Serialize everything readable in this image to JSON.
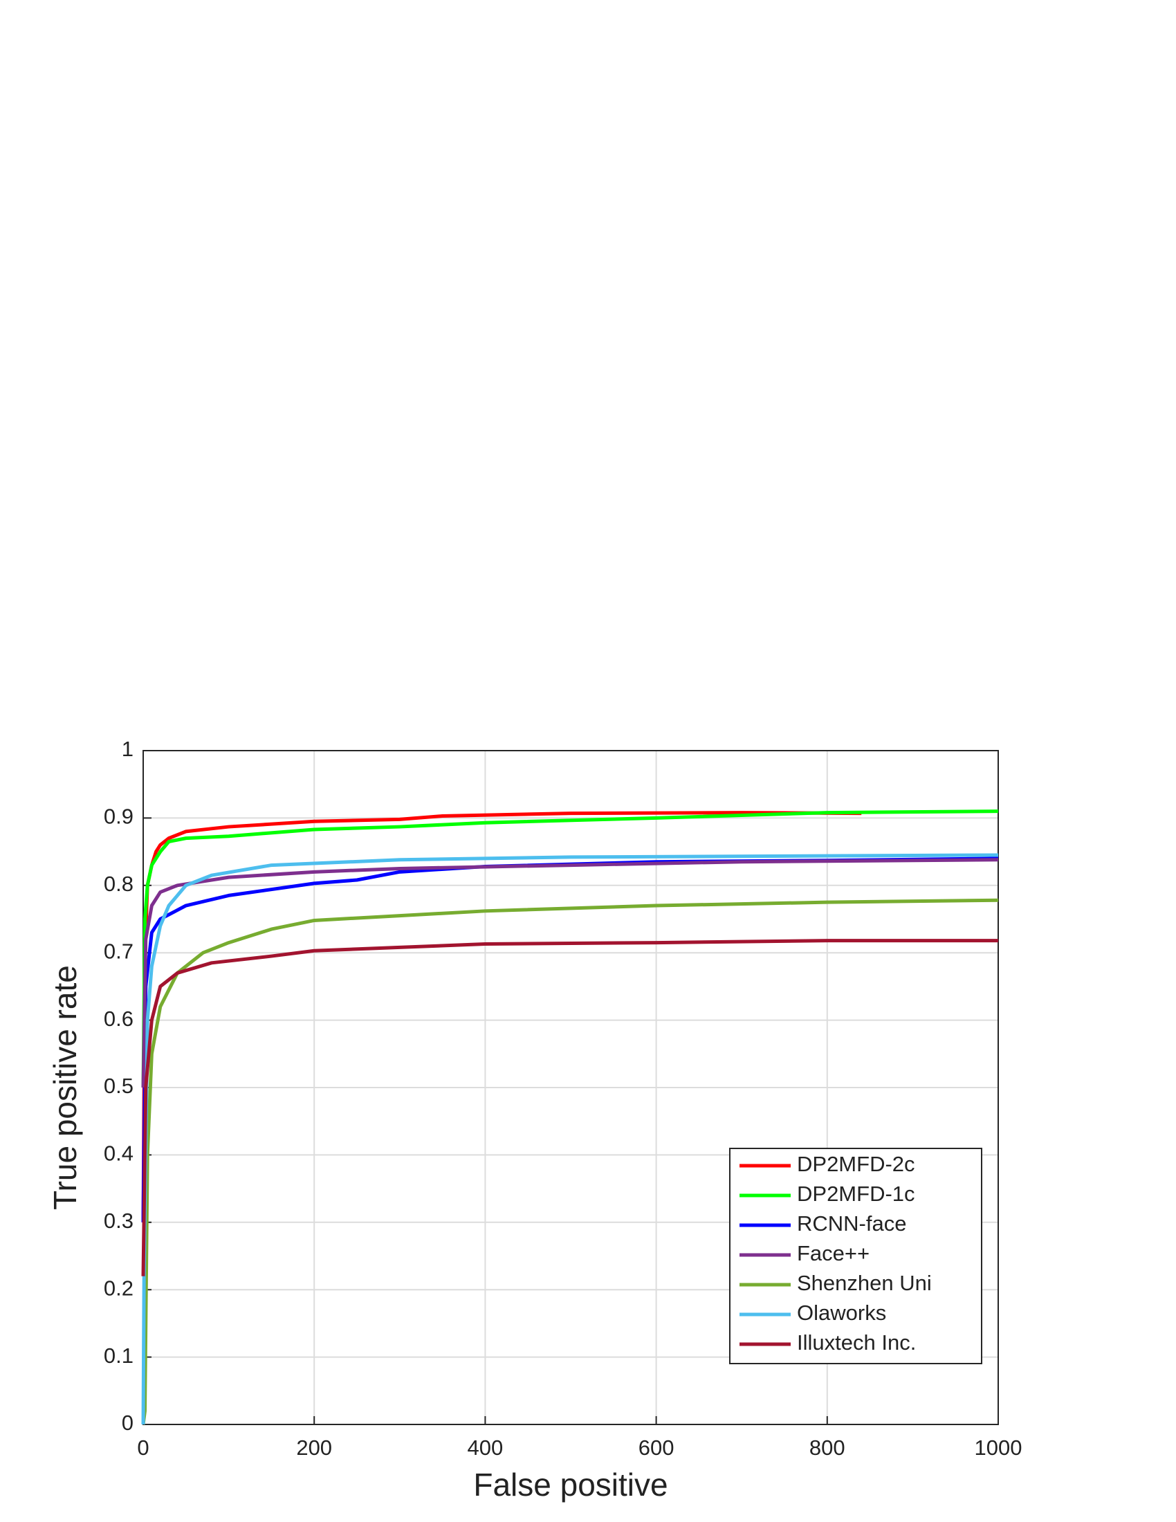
{
  "chart_data": {
    "type": "line",
    "xlabel": "False positive",
    "ylabel": "True positive rate",
    "xlim": [
      0,
      1000
    ],
    "ylim": [
      0,
      1
    ],
    "xticks": [
      0,
      200,
      400,
      600,
      800,
      1000
    ],
    "yticks": [
      0,
      0.1,
      0.2,
      0.3,
      0.4,
      0.5,
      0.6,
      0.7,
      0.8,
      0.9,
      1
    ],
    "grid": true,
    "legend": "lower right",
    "series": [
      {
        "name": "DP2MFD-2c",
        "color": "#ff0000",
        "x": [
          0,
          2,
          5,
          10,
          15,
          20,
          30,
          50,
          100,
          200,
          300,
          350,
          500,
          700,
          840
        ],
        "values": [
          0.3,
          0.7,
          0.8,
          0.83,
          0.85,
          0.86,
          0.87,
          0.88,
          0.887,
          0.895,
          0.898,
          0.903,
          0.907,
          0.908,
          0.907
        ]
      },
      {
        "name": "DP2MFD-1c",
        "color": "#00ff00",
        "x": [
          0,
          2,
          5,
          10,
          20,
          30,
          50,
          100,
          200,
          300,
          400,
          600,
          800,
          1000
        ],
        "values": [
          0.5,
          0.75,
          0.8,
          0.83,
          0.85,
          0.865,
          0.87,
          0.873,
          0.883,
          0.887,
          0.893,
          0.9,
          0.908,
          0.91
        ]
      },
      {
        "name": "RCNN-face",
        "color": "#0000ff",
        "x": [
          0,
          3,
          10,
          20,
          50,
          100,
          200,
          250,
          300,
          400,
          600,
          800,
          1000
        ],
        "values": [
          0.3,
          0.65,
          0.73,
          0.75,
          0.77,
          0.785,
          0.803,
          0.808,
          0.82,
          0.828,
          0.835,
          0.837,
          0.84
        ]
      },
      {
        "name": "Face++",
        "color": "#7e2f8e",
        "x": [
          0,
          3,
          10,
          20,
          40,
          100,
          200,
          300,
          500,
          700,
          1000
        ],
        "values": [
          0.5,
          0.72,
          0.77,
          0.79,
          0.8,
          0.812,
          0.82,
          0.825,
          0.83,
          0.835,
          0.838
        ]
      },
      {
        "name": "Shenzhen Uni",
        "color": "#77ac30",
        "x": [
          0,
          2,
          5,
          10,
          20,
          40,
          70,
          100,
          150,
          200,
          300,
          400,
          600,
          800,
          1000
        ],
        "values": [
          0,
          0.02,
          0.4,
          0.55,
          0.62,
          0.67,
          0.7,
          0.715,
          0.735,
          0.748,
          0.755,
          0.762,
          0.77,
          0.775,
          0.778
        ]
      },
      {
        "name": "Olaworks",
        "color": "#4dbeee",
        "x": [
          0,
          1,
          5,
          10,
          20,
          30,
          50,
          80,
          150,
          300,
          500,
          1000
        ],
        "values": [
          0,
          0.22,
          0.6,
          0.68,
          0.74,
          0.77,
          0.8,
          0.815,
          0.83,
          0.838,
          0.842,
          0.845
        ]
      },
      {
        "name": "Illuxtech Inc.",
        "color": "#a2142f",
        "x": [
          0,
          3,
          10,
          20,
          40,
          80,
          150,
          200,
          300,
          400,
          600,
          800,
          1000
        ],
        "values": [
          0.22,
          0.5,
          0.6,
          0.65,
          0.67,
          0.685,
          0.695,
          0.703,
          0.708,
          0.713,
          0.715,
          0.718,
          0.718
        ]
      }
    ]
  }
}
